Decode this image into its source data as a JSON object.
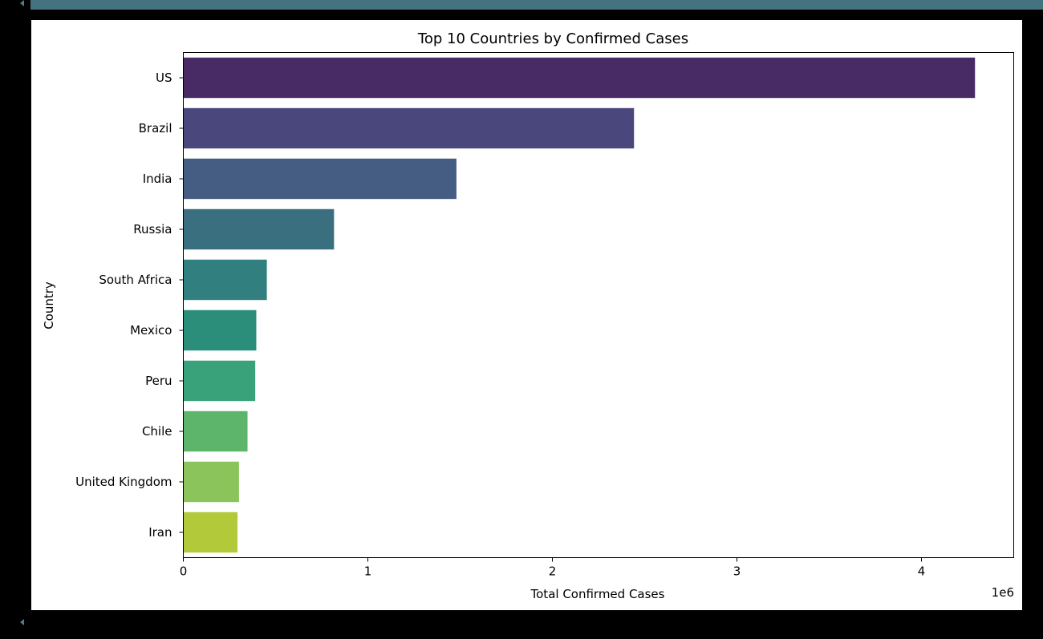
{
  "output_cell": {
    "scroll_indicator": "triangle-left-icon"
  },
  "chart_data": {
    "type": "bar",
    "orientation": "horizontal",
    "title": "Top 10 Countries by Confirmed Cases",
    "xlabel": "Total Confirmed Cases",
    "ylabel": "Country",
    "x_offset_text": "1e6",
    "xlim": [
      0,
      4.5
    ],
    "xticks": [
      "0",
      "1",
      "2",
      "3",
      "4"
    ],
    "grid": false,
    "categories": [
      "US",
      "Brazil",
      "India",
      "Russia",
      "South Africa",
      "Mexico",
      "Peru",
      "Chile",
      "United Kingdom",
      "Iran"
    ],
    "values": [
      4290259,
      2442375,
      1480073,
      816680,
      452529,
      395489,
      389717,
      347923,
      301708,
      293606
    ],
    "colors": [
      "#482a64",
      "#4a477d",
      "#455d82",
      "#3a6f80",
      "#317f7e",
      "#2a8e7a",
      "#3aa27a",
      "#5cb56a",
      "#8ac45a",
      "#b2c93a"
    ]
  }
}
